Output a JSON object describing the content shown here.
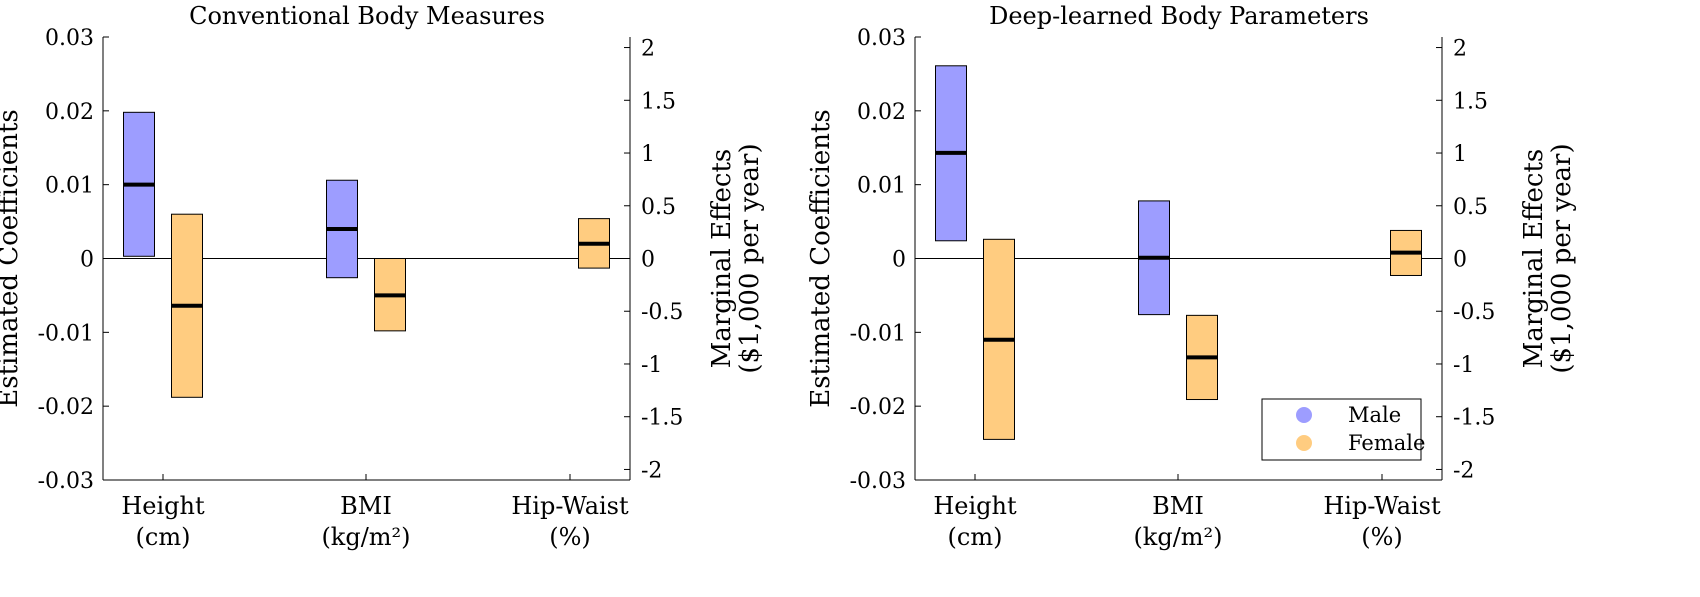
{
  "chart_data": [
    {
      "type": "box",
      "title": "Conventional Body Measures",
      "ylabel": "Estimated Coefficients",
      "ylabel_right": [
        "Marginal Effects",
        "($1,000 per year)"
      ],
      "ylim": [
        -0.03,
        0.03
      ],
      "yticks": [
        "0.03",
        "0.02",
        "0.01",
        "0",
        "-0.01",
        "-0.02",
        "-0.03"
      ],
      "ylim_right": [
        -2.1,
        2.1
      ],
      "yticks_right": [
        "2",
        "1.5",
        "1",
        "0.5",
        "0",
        "-0.5",
        "-1",
        "-1.5",
        "-2"
      ],
      "categories": [
        {
          "line1": "Height",
          "line2": "(cm)"
        },
        {
          "line1": "BMI",
          "line2": "(kg/m²)"
        },
        {
          "line1": "Hip-Waist",
          "line2": "(%)"
        }
      ],
      "series": [
        {
          "name": "Male",
          "color": "#9d9dff",
          "values": [
            {
              "low": 0.0003,
              "high": 0.0198,
              "est": 0.01
            },
            {
              "low": -0.0026,
              "high": 0.0106,
              "est": 0.004
            },
            null
          ]
        },
        {
          "name": "Female",
          "color": "#ffcc80",
          "values": [
            {
              "low": -0.0188,
              "high": 0.006,
              "est": -0.0064
            },
            {
              "low": -0.0098,
              "high": 0.0,
              "est": -0.005
            },
            {
              "low": -0.0013,
              "high": 0.0054,
              "est": 0.002
            }
          ]
        }
      ]
    },
    {
      "type": "box",
      "title": "Deep-learned Body Parameters",
      "ylabel": "Estimated Coefficients",
      "ylabel_right": [
        "Marginal Effects",
        "($1,000 per year)"
      ],
      "ylim": [
        -0.03,
        0.03
      ],
      "yticks": [
        "0.03",
        "0.02",
        "0.01",
        "0",
        "-0.01",
        "-0.02",
        "-0.03"
      ],
      "ylim_right": [
        -2.1,
        2.1
      ],
      "yticks_right": [
        "2",
        "1.5",
        "1",
        "0.5",
        "0",
        "-0.5",
        "-1",
        "-1.5",
        "-2"
      ],
      "categories": [
        {
          "line1": "Height",
          "line2": "(cm)"
        },
        {
          "line1": "BMI",
          "line2": "(kg/m²)"
        },
        {
          "line1": "Hip-Waist",
          "line2": "(%)"
        }
      ],
      "legend": {
        "placement": "bottom-right",
        "entries": [
          "Male",
          "Female"
        ]
      },
      "series": [
        {
          "name": "Male",
          "color": "#9d9dff",
          "values": [
            {
              "low": 0.0024,
              "high": 0.0261,
              "est": 0.0143
            },
            {
              "low": -0.0076,
              "high": 0.0078,
              "est": 0.0001
            },
            null
          ]
        },
        {
          "name": "Female",
          "color": "#ffcc80",
          "values": [
            {
              "low": -0.0245,
              "high": 0.0026,
              "est": -0.011
            },
            {
              "low": -0.0191,
              "high": -0.0077,
              "est": -0.0134
            },
            {
              "low": -0.0023,
              "high": 0.0038,
              "est": 0.0008
            }
          ]
        }
      ]
    }
  ]
}
